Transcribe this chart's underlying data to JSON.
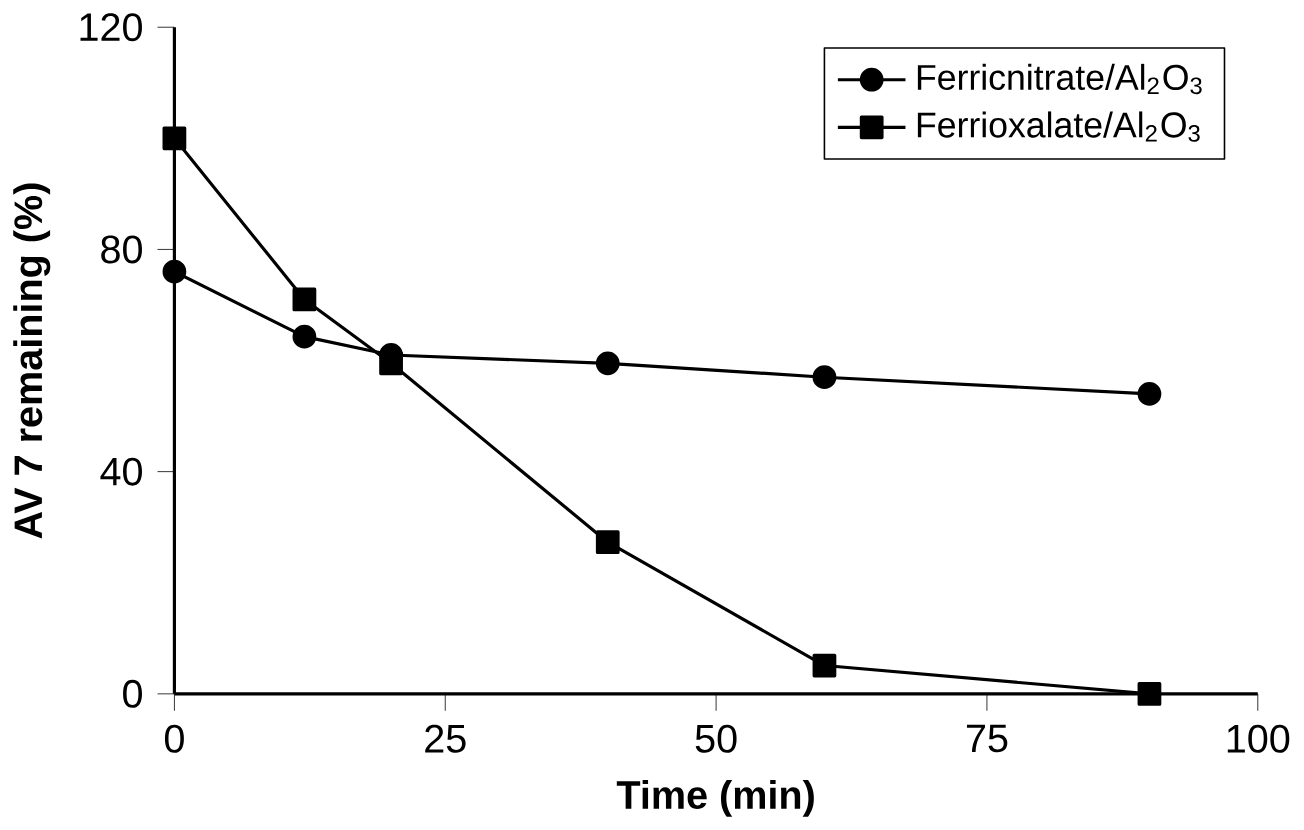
{
  "chart_data": {
    "type": "line",
    "xlabel": "Time (min)",
    "ylabel": "AV 7 remaining (%)",
    "xlim": [
      0,
      100
    ],
    "xticks": [
      0,
      25,
      50,
      75,
      100
    ],
    "ylim": [
      0,
      120
    ],
    "yticks": [
      0,
      40,
      80,
      120
    ],
    "legend": "top right",
    "grid": false,
    "series": [
      {
        "name": "Ferricnitrate/Al$_{2}$O$_{3}$",
        "color": "#000000",
        "marker": "circle",
        "x": [
          0,
          12,
          20,
          40,
          60,
          90
        ],
        "values": [
          76,
          64.3,
          61,
          59.5,
          57,
          54
        ]
      },
      {
        "name": "Ferrioxalate/Al$_{2}$O$_{3}$",
        "color": "#000000",
        "marker": "square",
        "x": [
          0,
          12,
          20,
          40,
          60,
          90
        ],
        "values": [
          100,
          71,
          59.5,
          27.3,
          5.1,
          0
        ]
      }
    ]
  }
}
